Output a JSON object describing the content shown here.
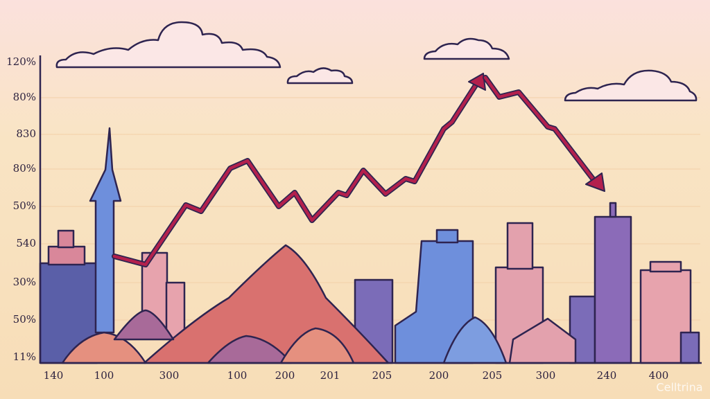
{
  "y_axis_labels": [
    "120%",
    "80%",
    "830",
    "80%",
    "50%",
    "540",
    "30%",
    "50%",
    "11%"
  ],
  "x_axis_labels": [
    "140",
    "100",
    "300",
    "100",
    "200",
    "201",
    "205",
    "200",
    "205",
    "300",
    "240",
    "400"
  ],
  "watermark": "Celltrina"
}
